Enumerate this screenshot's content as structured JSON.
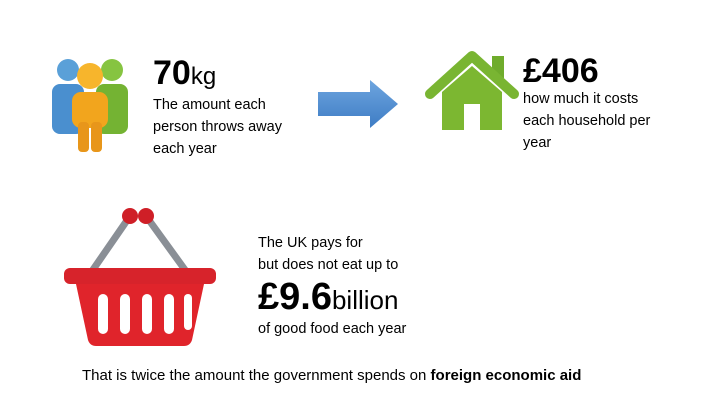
{
  "people": {
    "icon": "people-group-icon",
    "value": "70",
    "unit": "kg",
    "description": [
      "The amount each",
      "person throws away",
      "each year"
    ]
  },
  "arrow": {
    "icon": "right-arrow-icon",
    "color": "#4a88cf"
  },
  "house": {
    "icon": "house-icon",
    "color": "#7cb731",
    "value": "£406",
    "description": [
      "how much it costs",
      "each household per",
      "year"
    ]
  },
  "basket": {
    "icon": "shopping-basket-icon",
    "color": "#e0242b",
    "intro": [
      "The UK pays for",
      "but does not eat up to"
    ],
    "value": "£9.6",
    "unit": "billion",
    "footer": "of good food each year"
  },
  "conclusion": {
    "text": "That is twice the amount the government spends on ",
    "emphasis": "foreign economic aid"
  }
}
